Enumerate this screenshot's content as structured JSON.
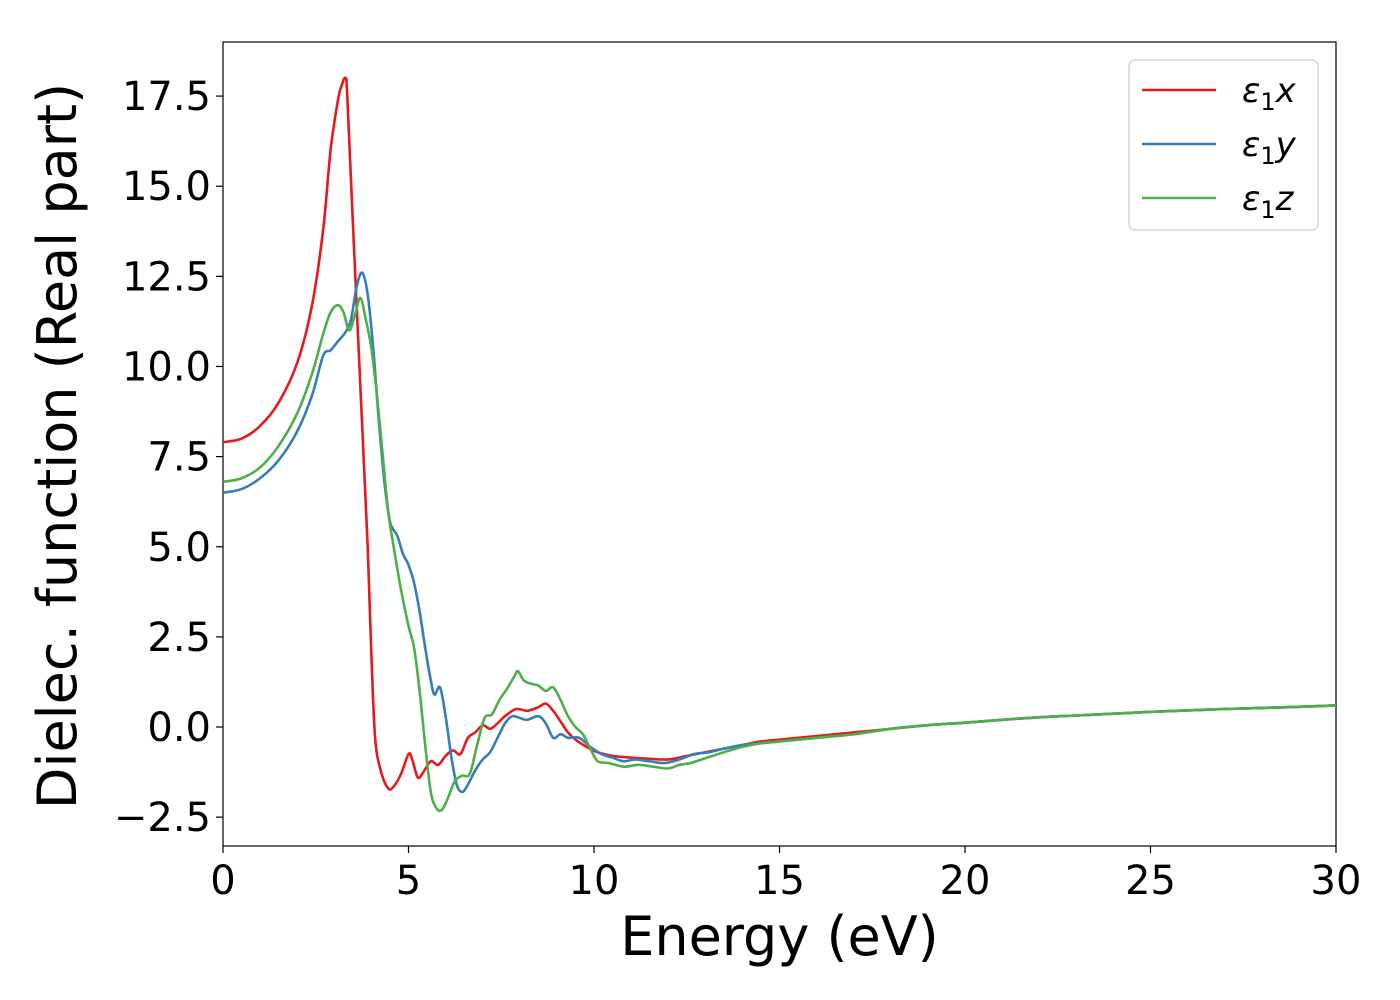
{
  "chart_data": {
    "type": "line",
    "title": "",
    "xlabel": "Energy (eV)",
    "ylabel": "Dielec. function (Real part)",
    "xlim": [
      0,
      30
    ],
    "ylim": [
      -3.3,
      19.0
    ],
    "xticks": [
      0,
      5,
      10,
      15,
      20,
      25,
      30
    ],
    "xtick_labels": [
      "0",
      "5",
      "10",
      "15",
      "20",
      "25",
      "30"
    ],
    "yticks": [
      -2.5,
      0.0,
      2.5,
      5.0,
      7.5,
      10.0,
      12.5,
      15.0,
      17.5
    ],
    "ytick_labels": [
      "−2.5",
      "0.0",
      "2.5",
      "5.0",
      "7.5",
      "10.0",
      "12.5",
      "15.0",
      "17.5"
    ],
    "grid": false,
    "legend_position": "top-right",
    "series": [
      {
        "name": "ε1x",
        "legend_main": "ε",
        "legend_sub": "1",
        "legend_tail": "x",
        "color": "#e41a1c",
        "points": [
          [
            0,
            7.9
          ],
          [
            0.5,
            8.0
          ],
          [
            1.0,
            8.35
          ],
          [
            1.5,
            9.0
          ],
          [
            2.0,
            10.1
          ],
          [
            2.4,
            11.7
          ],
          [
            2.7,
            13.8
          ],
          [
            2.9,
            16.0
          ],
          [
            3.1,
            17.4
          ],
          [
            3.2,
            17.8
          ],
          [
            3.3,
            18.0
          ],
          [
            3.35,
            17.5
          ],
          [
            3.5,
            14.0
          ],
          [
            3.7,
            9.5
          ],
          [
            3.9,
            5.0
          ],
          [
            4.0,
            2.0
          ],
          [
            4.1,
            -0.3
          ],
          [
            4.25,
            -1.2
          ],
          [
            4.45,
            -1.7
          ],
          [
            4.6,
            -1.65
          ],
          [
            4.8,
            -1.3
          ],
          [
            5.0,
            -0.75
          ],
          [
            5.1,
            -0.9
          ],
          [
            5.25,
            -1.4
          ],
          [
            5.4,
            -1.25
          ],
          [
            5.6,
            -0.95
          ],
          [
            5.8,
            -1.05
          ],
          [
            6.0,
            -0.8
          ],
          [
            6.2,
            -0.65
          ],
          [
            6.4,
            -0.75
          ],
          [
            6.6,
            -0.3
          ],
          [
            6.8,
            -0.15
          ],
          [
            7.0,
            0.05
          ],
          [
            7.2,
            -0.05
          ],
          [
            7.4,
            0.1
          ],
          [
            7.6,
            0.3
          ],
          [
            7.9,
            0.5
          ],
          [
            8.2,
            0.45
          ],
          [
            8.5,
            0.55
          ],
          [
            8.7,
            0.65
          ],
          [
            8.9,
            0.45
          ],
          [
            9.1,
            0.15
          ],
          [
            9.3,
            -0.15
          ],
          [
            9.5,
            -0.35
          ],
          [
            9.8,
            -0.55
          ],
          [
            10.1,
            -0.7
          ],
          [
            10.5,
            -0.8
          ],
          [
            11.0,
            -0.85
          ],
          [
            11.5,
            -0.88
          ],
          [
            12.0,
            -0.9
          ],
          [
            12.5,
            -0.8
          ],
          [
            13.0,
            -0.7
          ],
          [
            13.5,
            -0.6
          ],
          [
            14.0,
            -0.5
          ],
          [
            14.5,
            -0.4
          ],
          [
            15.0,
            -0.35
          ],
          [
            16.0,
            -0.25
          ],
          [
            17.0,
            -0.15
          ],
          [
            18.0,
            -0.05
          ],
          [
            19.0,
            0.05
          ],
          [
            20.0,
            0.12
          ],
          [
            21.0,
            0.2
          ],
          [
            22.0,
            0.27
          ],
          [
            23.0,
            0.32
          ],
          [
            24.0,
            0.37
          ],
          [
            25.0,
            0.42
          ],
          [
            26.0,
            0.46
          ],
          [
            27.0,
            0.5
          ],
          [
            28.0,
            0.53
          ],
          [
            29.0,
            0.56
          ],
          [
            30.0,
            0.6
          ]
        ]
      },
      {
        "name": "ε1y",
        "legend_main": "ε",
        "legend_sub": "1",
        "legend_tail": "y",
        "color": "#377eb8",
        "points": [
          [
            0,
            6.5
          ],
          [
            0.5,
            6.6
          ],
          [
            1.0,
            6.9
          ],
          [
            1.5,
            7.4
          ],
          [
            2.0,
            8.2
          ],
          [
            2.4,
            9.2
          ],
          [
            2.7,
            10.3
          ],
          [
            2.9,
            10.45
          ],
          [
            3.1,
            10.7
          ],
          [
            3.3,
            10.95
          ],
          [
            3.45,
            11.3
          ],
          [
            3.6,
            12.2
          ],
          [
            3.75,
            12.6
          ],
          [
            3.9,
            12.0
          ],
          [
            4.05,
            10.5
          ],
          [
            4.2,
            8.5
          ],
          [
            4.35,
            6.8
          ],
          [
            4.5,
            5.7
          ],
          [
            4.7,
            5.3
          ],
          [
            4.85,
            4.8
          ],
          [
            5.0,
            4.5
          ],
          [
            5.15,
            4.0
          ],
          [
            5.3,
            3.2
          ],
          [
            5.45,
            2.2
          ],
          [
            5.6,
            1.3
          ],
          [
            5.7,
            0.9
          ],
          [
            5.85,
            1.1
          ],
          [
            6.0,
            0.3
          ],
          [
            6.15,
            -0.8
          ],
          [
            6.3,
            -1.6
          ],
          [
            6.45,
            -1.8
          ],
          [
            6.6,
            -1.6
          ],
          [
            6.8,
            -1.2
          ],
          [
            7.0,
            -0.9
          ],
          [
            7.2,
            -0.7
          ],
          [
            7.4,
            -0.3
          ],
          [
            7.6,
            0.1
          ],
          [
            7.8,
            0.3
          ],
          [
            8.0,
            0.25
          ],
          [
            8.2,
            0.2
          ],
          [
            8.5,
            0.3
          ],
          [
            8.7,
            0.1
          ],
          [
            8.9,
            -0.3
          ],
          [
            9.1,
            -0.2
          ],
          [
            9.3,
            -0.3
          ],
          [
            9.6,
            -0.3
          ],
          [
            9.9,
            -0.55
          ],
          [
            10.2,
            -0.75
          ],
          [
            10.5,
            -0.85
          ],
          [
            10.8,
            -0.95
          ],
          [
            11.1,
            -0.9
          ],
          [
            11.5,
            -0.95
          ],
          [
            11.9,
            -1.0
          ],
          [
            12.3,
            -0.9
          ],
          [
            12.7,
            -0.75
          ],
          [
            13.1,
            -0.7
          ],
          [
            13.5,
            -0.6
          ],
          [
            14.0,
            -0.5
          ],
          [
            14.5,
            -0.45
          ],
          [
            15.0,
            -0.4
          ],
          [
            16.0,
            -0.3
          ],
          [
            17.0,
            -0.2
          ],
          [
            18.0,
            -0.05
          ],
          [
            19.0,
            0.05
          ],
          [
            20.0,
            0.12
          ],
          [
            21.0,
            0.2
          ],
          [
            22.0,
            0.27
          ],
          [
            23.0,
            0.32
          ],
          [
            24.0,
            0.37
          ],
          [
            25.0,
            0.42
          ],
          [
            26.0,
            0.46
          ],
          [
            27.0,
            0.5
          ],
          [
            28.0,
            0.53
          ],
          [
            29.0,
            0.56
          ],
          [
            30.0,
            0.6
          ]
        ]
      },
      {
        "name": "ε1z",
        "legend_main": "ε",
        "legend_sub": "1",
        "legend_tail": "z",
        "color": "#4daf4a",
        "points": [
          [
            0,
            6.8
          ],
          [
            0.5,
            6.9
          ],
          [
            1.0,
            7.2
          ],
          [
            1.5,
            7.8
          ],
          [
            2.0,
            8.7
          ],
          [
            2.4,
            9.8
          ],
          [
            2.7,
            10.9
          ],
          [
            2.9,
            11.5
          ],
          [
            3.1,
            11.7
          ],
          [
            3.25,
            11.5
          ],
          [
            3.4,
            11.0
          ],
          [
            3.55,
            11.4
          ],
          [
            3.7,
            11.9
          ],
          [
            3.85,
            11.3
          ],
          [
            4.0,
            10.5
          ],
          [
            4.15,
            9.2
          ],
          [
            4.3,
            7.6
          ],
          [
            4.45,
            6.0
          ],
          [
            4.6,
            5.0
          ],
          [
            4.8,
            3.8
          ],
          [
            5.0,
            2.8
          ],
          [
            5.15,
            2.2
          ],
          [
            5.3,
            1.0
          ],
          [
            5.45,
            -0.5
          ],
          [
            5.6,
            -1.8
          ],
          [
            5.75,
            -2.25
          ],
          [
            5.9,
            -2.3
          ],
          [
            6.05,
            -2.0
          ],
          [
            6.25,
            -1.5
          ],
          [
            6.45,
            -1.35
          ],
          [
            6.65,
            -1.3
          ],
          [
            6.85,
            -0.5
          ],
          [
            7.05,
            0.25
          ],
          [
            7.25,
            0.35
          ],
          [
            7.45,
            0.75
          ],
          [
            7.65,
            1.05
          ],
          [
            7.85,
            1.4
          ],
          [
            7.95,
            1.55
          ],
          [
            8.1,
            1.3
          ],
          [
            8.3,
            1.2
          ],
          [
            8.5,
            1.15
          ],
          [
            8.7,
            1.0
          ],
          [
            8.9,
            1.1
          ],
          [
            9.1,
            0.75
          ],
          [
            9.3,
            0.3
          ],
          [
            9.5,
            0.0
          ],
          [
            9.7,
            -0.2
          ],
          [
            9.9,
            -0.6
          ],
          [
            10.1,
            -0.95
          ],
          [
            10.4,
            -1.0
          ],
          [
            10.8,
            -1.1
          ],
          [
            11.2,
            -1.05
          ],
          [
            11.6,
            -1.1
          ],
          [
            12.0,
            -1.15
          ],
          [
            12.3,
            -1.05
          ],
          [
            12.6,
            -1.0
          ],
          [
            12.9,
            -0.9
          ],
          [
            13.2,
            -0.8
          ],
          [
            13.5,
            -0.7
          ],
          [
            14.0,
            -0.55
          ],
          [
            14.5,
            -0.45
          ],
          [
            15.0,
            -0.4
          ],
          [
            16.0,
            -0.3
          ],
          [
            17.0,
            -0.2
          ],
          [
            18.0,
            -0.05
          ],
          [
            19.0,
            0.05
          ],
          [
            20.0,
            0.12
          ],
          [
            21.0,
            0.2
          ],
          [
            22.0,
            0.27
          ],
          [
            23.0,
            0.32
          ],
          [
            24.0,
            0.37
          ],
          [
            25.0,
            0.42
          ],
          [
            26.0,
            0.46
          ],
          [
            27.0,
            0.5
          ],
          [
            28.0,
            0.53
          ],
          [
            29.0,
            0.56
          ],
          [
            30.0,
            0.6
          ]
        ]
      }
    ]
  }
}
